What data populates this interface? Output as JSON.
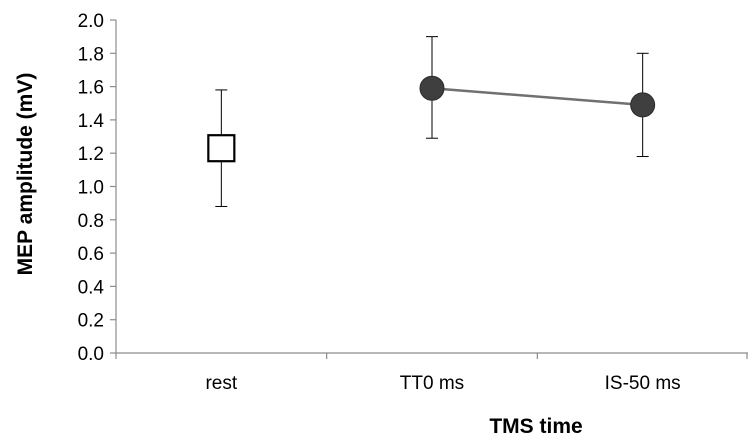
{
  "chart_data": {
    "type": "scatter",
    "title": "",
    "xlabel": "TMS time",
    "ylabel": "MEP amplitude (mV)",
    "categories": [
      "rest",
      "TT0 ms",
      "IS-50 ms"
    ],
    "ylim": [
      0,
      2.0
    ],
    "yticks": [
      "0.0",
      "0.2",
      "0.4",
      "0.6",
      "0.8",
      "1.0",
      "1.2",
      "1.4",
      "1.6",
      "1.8",
      "2.0"
    ],
    "grid": false,
    "legend": "none",
    "series": [
      {
        "marker": "open-square",
        "color": "#000000",
        "connected": false,
        "points": [
          {
            "x": "rest",
            "y": 1.23,
            "err_low": 0.88,
            "err_high": 1.58
          }
        ]
      },
      {
        "marker": "filled-circle",
        "color": "#3f3f3f",
        "line_color": "#707070",
        "connected": true,
        "points": [
          {
            "x": "TT0 ms",
            "y": 1.59,
            "err_low": 1.29,
            "err_high": 1.9
          },
          {
            "x": "IS-50 ms",
            "y": 1.49,
            "err_low": 1.18,
            "err_high": 1.8
          }
        ]
      }
    ]
  }
}
